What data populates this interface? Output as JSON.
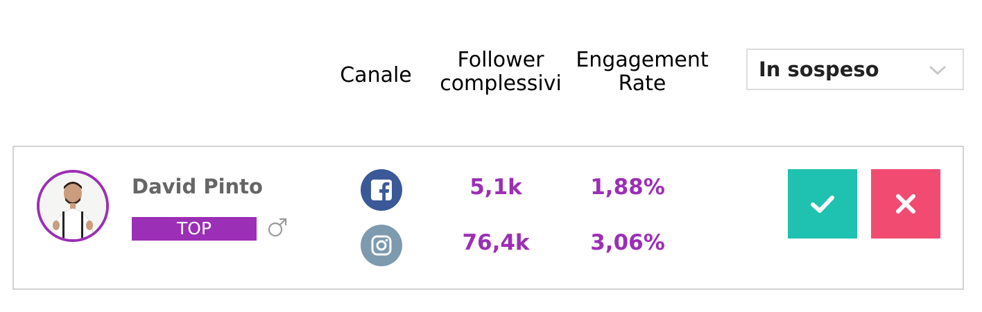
{
  "columns": {
    "channel": "Canale",
    "followers_line1": "Follower",
    "followers_line2": "complessivi",
    "engagement_line1": "Engagement",
    "engagement_line2": "Rate"
  },
  "status_filter": {
    "selected": "In sospeso",
    "icon": "chevron-down-icon"
  },
  "influencer": {
    "name": "David Pinto",
    "tier": "TOP",
    "gender_icon": "male-symbol-icon",
    "channels": [
      {
        "icon": "facebook-icon",
        "followers": "5,1k",
        "engagement_rate": "1,88%"
      },
      {
        "icon": "instagram-icon",
        "followers": "76,4k",
        "engagement_rate": "3,06%"
      }
    ]
  },
  "actions": {
    "approve_icon": "checkmark-icon",
    "reject_icon": "close-icon"
  },
  "colors": {
    "accent": "#9b2fb5",
    "approve": "#1fc1b0",
    "reject": "#f24b72",
    "facebook": "#3b5998",
    "instagram": "#7e9aae"
  }
}
